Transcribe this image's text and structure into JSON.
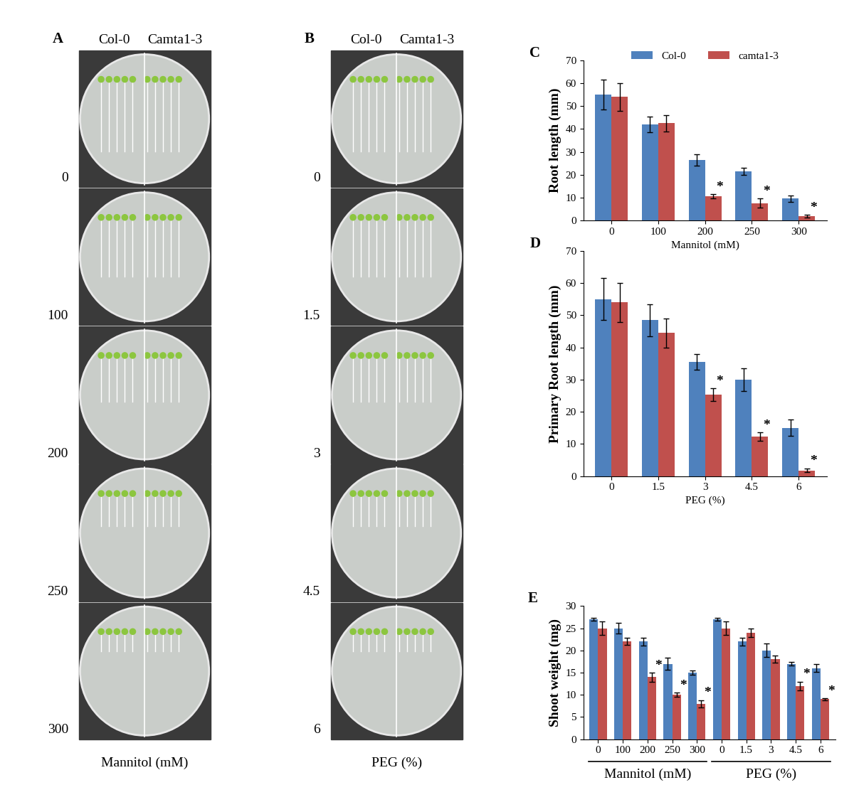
{
  "chart_data": [
    {
      "type": "image",
      "panel": "A",
      "columns": [
        "Col-0",
        "Camta1-3"
      ],
      "row_labels": [
        "0",
        "100",
        "200",
        "250",
        "300"
      ],
      "xlabel": "Mannitol (mM)"
    },
    {
      "type": "image",
      "panel": "B",
      "columns": [
        "Col-0",
        "Camta1-3"
      ],
      "row_labels": [
        "0",
        "1.5",
        "3",
        "4.5",
        "6"
      ],
      "xlabel": "PEG (%)"
    },
    {
      "type": "bar",
      "panel": "C",
      "xlabel": "Mannitol (mM)",
      "ylabel": "Root length (mm)",
      "categories": [
        "0",
        "100",
        "200",
        "250",
        "300"
      ],
      "ylim": [
        0,
        70
      ],
      "yticks": [
        0,
        10,
        20,
        30,
        40,
        50,
        60,
        70
      ],
      "legend": "upper center",
      "series": [
        {
          "name": "Col-0",
          "color": "#4f81bd",
          "values": [
            55,
            42,
            26.5,
            21.5,
            9.5
          ],
          "errors": [
            6.5,
            3.5,
            2.5,
            1.5,
            1.5
          ]
        },
        {
          "name": "camta1-3",
          "color": "#c0504d",
          "values": [
            54,
            42.5,
            10.5,
            7.5,
            1.8
          ],
          "errors": [
            6,
            3.5,
            1,
            2,
            0.5
          ],
          "significant": [
            false,
            false,
            true,
            true,
            true
          ],
          "significance_label": "*"
        }
      ]
    },
    {
      "type": "bar",
      "panel": "D",
      "xlabel": "PEG (%)",
      "ylabel": "Primary Root length (mm)",
      "categories": [
        "0",
        "1.5",
        "3",
        "4.5",
        "6"
      ],
      "ylim": [
        0,
        70
      ],
      "yticks": [
        0,
        10,
        20,
        30,
        40,
        50,
        60,
        70
      ],
      "series": [
        {
          "name": "Col-0",
          "color": "#4f81bd",
          "values": [
            55,
            48.5,
            35.5,
            30,
            15
          ],
          "errors": [
            6.5,
            5,
            2.5,
            3.5,
            2.5
          ]
        },
        {
          "name": "camta1-3",
          "color": "#c0504d",
          "values": [
            54,
            44.5,
            25.3,
            12.3,
            1.8
          ],
          "errors": [
            6,
            4.5,
            2,
            1.3,
            0.6
          ],
          "significant": [
            false,
            false,
            true,
            true,
            true
          ],
          "significance_label": "*"
        }
      ]
    },
    {
      "type": "bar",
      "panel": "E",
      "ylabel": "Shoot weight (mg)",
      "categories": [
        "0",
        "100",
        "200",
        "250",
        "300",
        "0",
        "1.5",
        "3",
        "4.5",
        "6"
      ],
      "groups": [
        {
          "label": "Mannitol (mM)",
          "count": 5
        },
        {
          "label": "PEG (%)",
          "count": 5
        }
      ],
      "ylim": [
        0,
        30
      ],
      "yticks": [
        0,
        5,
        10,
        15,
        20,
        25,
        30
      ],
      "series": [
        {
          "name": "Col-0",
          "color": "#4f81bd",
          "values": [
            27,
            25,
            22,
            17,
            15,
            27,
            22,
            20,
            17,
            16
          ],
          "errors": [
            0.3,
            1.2,
            0.9,
            1.4,
            0.5,
            0.3,
            0.9,
            1.5,
            0.4,
            0.9
          ]
        },
        {
          "name": "camta1-3",
          "color": "#c0504d",
          "values": [
            25,
            22,
            14,
            10,
            8,
            25,
            24,
            18,
            12,
            9
          ],
          "errors": [
            1.5,
            0.8,
            1,
            0.5,
            0.8,
            1.5,
            1,
            0.8,
            1,
            0.2
          ],
          "significant": [
            false,
            false,
            true,
            true,
            true,
            false,
            false,
            false,
            true,
            true
          ],
          "significance_label": "*"
        }
      ]
    }
  ]
}
